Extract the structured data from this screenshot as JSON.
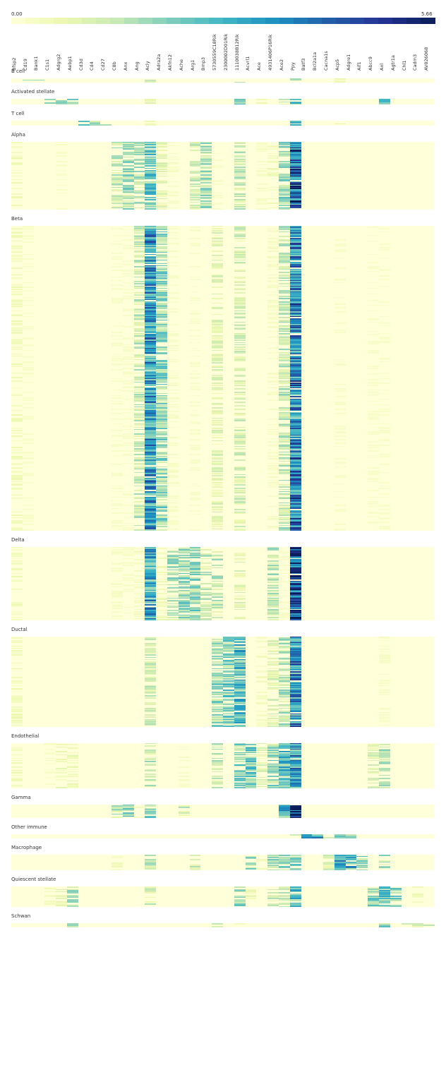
{
  "chart_data": {
    "type": "heatmap",
    "colorbar": {
      "min_label": "0.00",
      "max_label": "5.66",
      "range": [
        0.0,
        5.66
      ],
      "colors": [
        "#ffffd9",
        "#edf8b1",
        "#c7e9b4",
        "#7fcdbb",
        "#41b6c4",
        "#1d91c0",
        "#225ea8",
        "#253494",
        "#081d58"
      ]
    },
    "genes": [
      "Bfsp2",
      "Cd19",
      "Bank1",
      "C1s1",
      "Adgrg2",
      "Aebp1",
      "Cd3d",
      "Cd4",
      "Cd27",
      "C8b",
      "Anx",
      "Ang",
      "Acly",
      "Adra2a",
      "Akfn12",
      "Ache",
      "Arg1",
      "Bmp3",
      "5730559C18Rik",
      "2300002D01Rik",
      "1110038B12Rik",
      "Acvrl1",
      "Ace",
      "4931406P16Rik",
      "Ace2",
      "Ppy",
      "Batf3",
      "Bcl2a1a",
      "Cacna1s",
      "Acp5",
      "Adgre1",
      "Aif1",
      "Abcc9",
      "Axl",
      "Agtr1a",
      "Chl1",
      "Cadm3",
      "AV026068"
    ],
    "groups": [
      {
        "name": "B cell",
        "rows": 4,
        "expr": {
          "Cd19": 1.6,
          "Bank1": 1.4,
          "Acly": 1.2,
          "1110038B12Rik": 1.6,
          "Ppy": 2.0,
          "Acp5": 0.8,
          "Axl": 0.8
        }
      },
      {
        "name": "Activated stellate",
        "rows": 5,
        "expr": {
          "C1s1": 2.0,
          "Adgrg2": 1.8,
          "Aebp1": 2.6,
          "Acly": 1.0,
          "1110038B12Rik": 2.0,
          "Ace": 0.6,
          "Ace2": 1.2,
          "Ppy": 2.2,
          "Axl": 2.2
        }
      },
      {
        "name": "T cell",
        "rows": 4,
        "expr": {
          "Cd3d": 2.0,
          "Cd4": 1.8,
          "Cd27": 1.6,
          "Acly": 0.6,
          "Ppy": 3.0,
          "Acp5": 0.8
        }
      },
      {
        "name": "Alpha",
        "rows": 60,
        "expr": {
          "Bfsp2": 0.5,
          "Adgrg2": 0.1,
          "C8b": 1.4,
          "Anx": 1.7,
          "Ang": 1.5,
          "Acly": 2.3,
          "Adra2a": 0.9,
          "Akfn12": 0.3,
          "Arg1": 1.2,
          "Bmp3": 1.6,
          "5730559C18Rik": 0.1,
          "1110038B12Rik": 1.3,
          "Ace": 0.3,
          "4931406P16Rik": 0.5,
          "Ace2": 1.8,
          "Ppy": 4.0
        }
      },
      {
        "name": "Beta",
        "rows": 270,
        "expr": {
          "Bfsp2": 0.5,
          "Cd19": 0.05,
          "C8b": 0.2,
          "Anx": 0.2,
          "Ang": 1.3,
          "Acly": 3.2,
          "Adra2a": 1.9,
          "Akfn12": 0.3,
          "Arg1": 0.2,
          "5730559C18Rik": 0.9,
          "1110038B12Rik": 1.1,
          "4931406P16Rik": 0.3,
          "Ace2": 1.4,
          "Ppy": 3.7,
          "Acp5": 0.05,
          "Abcc9": 0.05,
          "Axl": 0.05
        }
      },
      {
        "name": "Delta",
        "rows": 65,
        "expr": {
          "Bfsp2": 0.5,
          "C8b": 0.3,
          "Anx": 0.2,
          "Ang": 0.4,
          "Acly": 3.0,
          "Adra2a": 0.6,
          "Akfn12": 1.6,
          "Ache": 1.8,
          "Arg1": 1.9,
          "Bmp3": 1.3,
          "5730559C18Rik": 1.4,
          "1110038B12Rik": 0.9,
          "4931406P16Rik": 1.4,
          "Ace2": 0.2,
          "Ppy": 4.8
        }
      },
      {
        "name": "Ductal",
        "rows": 80,
        "expr": {
          "Bfsp2": 0.5,
          "Acly": 1.2,
          "5730559C18Rik": 1.8,
          "2300002D01Rik": 2.1,
          "1110038B12Rik": 2.6,
          "Ace": 0.4,
          "4931406P16Rik": 1.0,
          "Ace2": 1.5,
          "Ppy": 3.5,
          "Axl": 0.3
        }
      },
      {
        "name": "Endothelial",
        "rows": 40,
        "expr": {
          "Bfsp2": 0.5,
          "C1s1": 0.3,
          "Adgrg2": 0.6,
          "Aebp1": 0.6,
          "Acly": 1.4,
          "Ache": 0.3,
          "5730559C18Rik": 1.4,
          "1110038B12Rik": 2.0,
          "Acvrl1": 2.2,
          "Ace": 1.0,
          "4931406P16Rik": 1.8,
          "Ace2": 2.5,
          "Ppy": 3.2,
          "Abcc9": 1.0,
          "Axl": 1.5
        }
      },
      {
        "name": "Gamma",
        "rows": 12,
        "expr": {
          "C8b": 1.4,
          "Anx": 2.3,
          "Ang": 0.7,
          "Acly": 2.0,
          "Ache": 1.2,
          "Ace2": 2.8,
          "Ppy": 5.66
        }
      },
      {
        "name": "Other immune",
        "rows": 3,
        "expr": {
          "Acly": 0.6,
          "Ppy": 1.6,
          "Batf3": 2.6,
          "Bcl2a1a": 2.8,
          "Cacna1s": 1.8,
          "Acp5": 1.8,
          "Adgre1": 1.5
        }
      },
      {
        "name": "Macrophage",
        "rows": 14,
        "expr": {
          "C8b": 0.5,
          "Acly": 1.5,
          "Arg1": 1.2,
          "Acvrl1": 1.6,
          "Ace": 0.5,
          "4931406P16Rik": 1.6,
          "Ace2": 1.8,
          "Ppy": 2.0,
          "Cacna1s": 1.0,
          "Acp5": 3.0,
          "Adgre1": 2.7,
          "Aif1": 2.0,
          "Axl": 1.6
        }
      },
      {
        "name": "Quiescent stellate",
        "rows": 18,
        "expr": {
          "C1s1": 0.4,
          "Adgrg2": 0.8,
          "Aebp1": 1.5,
          "Acly": 1.2,
          "1110038B12Rik": 1.8,
          "Acvrl1": 0.6,
          "4931406P16Rik": 1.2,
          "Ace2": 1.2,
          "Ppy": 2.6,
          "Abcc9": 2.0,
          "Axl": 2.4,
          "Agtr1a": 1.8,
          "Cadm3": 0.5
        }
      },
      {
        "name": "Schwan",
        "rows": 3,
        "expr": {
          "Aebp1": 1.6,
          "5730559C18Rik": 1.0,
          "1110038B12Rik": 0.8,
          "Axl": 2.0,
          "Chl1": 1.6,
          "Cadm3": 1.0,
          "AV026068": 1.2
        }
      }
    ]
  }
}
